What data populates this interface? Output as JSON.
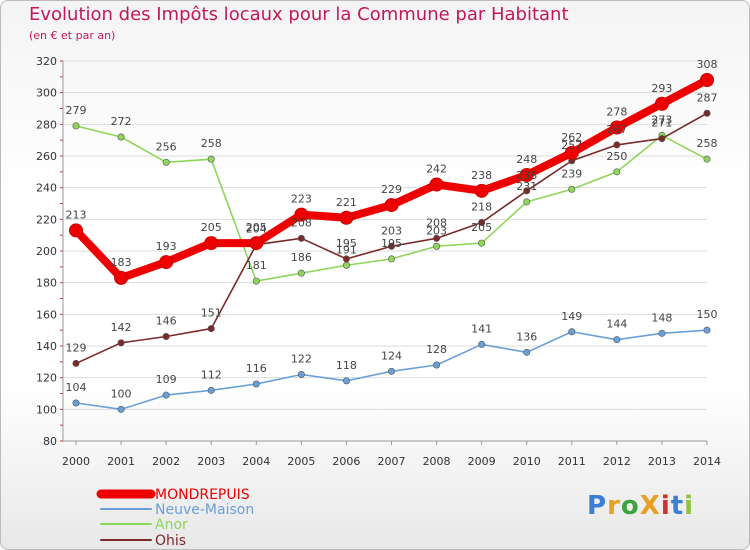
{
  "title": "Evolution des Impôts locaux pour la Commune par Habitant",
  "subtitle": "(en € et par an)",
  "logo_text": "ProXiti",
  "chart_data": {
    "type": "line",
    "categories": [
      "2000",
      "2001",
      "2002",
      "2003",
      "2004",
      "2005",
      "2006",
      "2007",
      "2008",
      "2009",
      "2010",
      "2011",
      "2012",
      "2013",
      "2014"
    ],
    "ylim": [
      80,
      320
    ],
    "yticks": [
      80,
      100,
      120,
      140,
      160,
      180,
      200,
      220,
      240,
      260,
      280,
      300,
      320
    ],
    "grid": true,
    "legend_position": "bottom-left",
    "series": [
      {
        "name": "MONDREPUIS",
        "color": "#ee0000",
        "values": [
          213,
          183,
          193,
          205,
          205,
          223,
          221,
          229,
          242,
          238,
          248,
          262,
          278,
          293,
          308
        ]
      },
      {
        "name": "Neuve-Maison",
        "color": "#6a9fd8",
        "values": [
          104,
          100,
          109,
          112,
          116,
          122,
          118,
          124,
          128,
          141,
          136,
          149,
          144,
          148,
          150
        ]
      },
      {
        "name": "Anor",
        "color": "#8ed65b",
        "values": [
          279,
          272,
          256,
          258,
          181,
          186,
          191,
          195,
          203,
          205,
          231,
          239,
          250,
          273,
          258
        ]
      },
      {
        "name": "Ohis",
        "color": "#7a2a2a",
        "values": [
          129,
          142,
          146,
          151,
          204,
          208,
          195,
          203,
          208,
          218,
          238,
          257,
          267,
          271,
          287
        ]
      }
    ]
  }
}
